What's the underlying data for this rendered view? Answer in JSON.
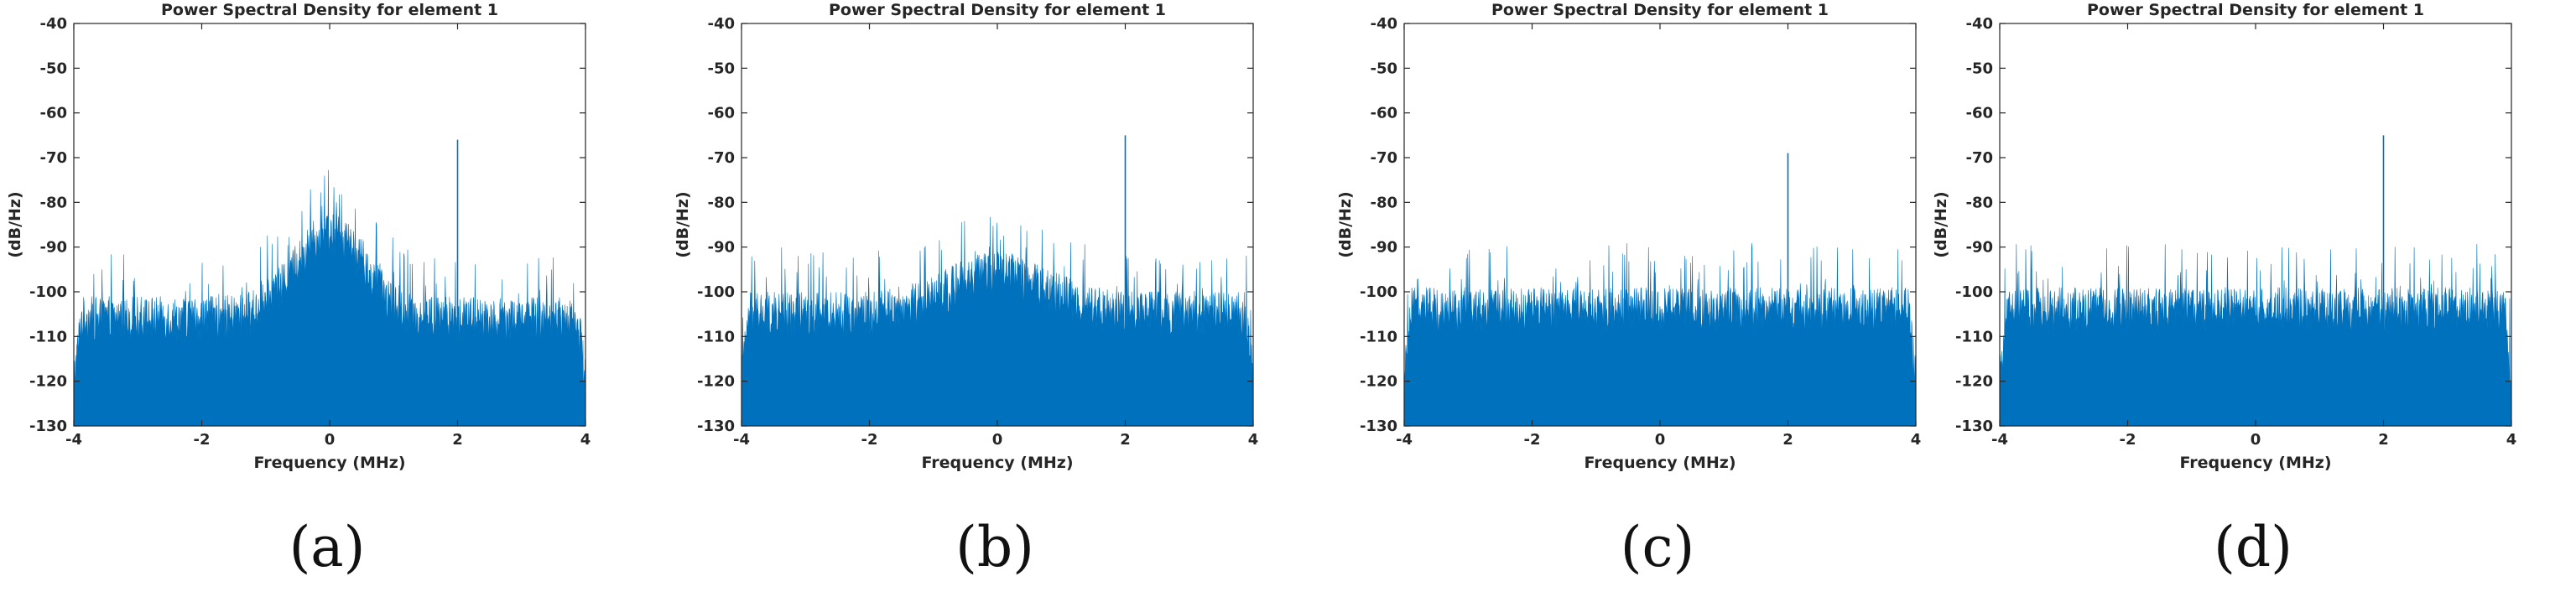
{
  "chart_data": [
    {
      "type": "area",
      "subfigure_label": "(a)",
      "title": "Power Spectral Density for element 1",
      "xlabel": "Frequency (MHz)",
      "ylabel": "(dB/Hz)",
      "xlim": [
        -4,
        4
      ],
      "ylim": [
        -130,
        -40
      ],
      "xticks": [
        -4,
        -2,
        0,
        2,
        4
      ],
      "yticks": [
        -40,
        -50,
        -60,
        -70,
        -80,
        -90,
        -100,
        -110,
        -120,
        -130
      ],
      "series": [
        {
          "name": "PSD",
          "color": "#0072BD",
          "noise_floor_dB": -106,
          "band_peak": {
            "center_MHz": 0,
            "width_MHz": 1.8,
            "peak_dB": -87
          },
          "spike": {
            "freq_MHz": 2,
            "peak_dB": -66
          },
          "edge_rolloff_dB": -120
        }
      ]
    },
    {
      "type": "area",
      "subfigure_label": "(b)",
      "title": "Power Spectral Density for element 1",
      "xlabel": "Frequency (MHz)",
      "ylabel": "(dB/Hz)",
      "xlim": [
        -4,
        4
      ],
      "ylim": [
        -130,
        -40
      ],
      "xticks": [
        -4,
        -2,
        0,
        2,
        4
      ],
      "yticks": [
        -40,
        -50,
        -60,
        -70,
        -80,
        -90,
        -100,
        -110,
        -120,
        -130
      ],
      "series": [
        {
          "name": "PSD",
          "color": "#0072BD",
          "noise_floor_dB": -105,
          "band_peak": {
            "center_MHz": 0,
            "width_MHz": 2.6,
            "peak_dB": -96
          },
          "spike": {
            "freq_MHz": 2,
            "peak_dB": -65
          },
          "edge_rolloff_dB": -120
        }
      ]
    },
    {
      "type": "area",
      "subfigure_label": "(c)",
      "title": "Power Spectral Density for element 1",
      "xlabel": "Frequency (MHz)",
      "ylabel": "(dB/Hz)",
      "xlim": [
        -4,
        4
      ],
      "ylim": [
        -130,
        -40
      ],
      "xticks": [
        -4,
        -2,
        0,
        2,
        4
      ],
      "yticks": [
        -40,
        -50,
        -60,
        -70,
        -80,
        -90,
        -100,
        -110,
        -120,
        -130
      ],
      "series": [
        {
          "name": "PSD",
          "color": "#0072BD",
          "noise_floor_dB": -104,
          "band_peak": null,
          "spike": {
            "freq_MHz": 2,
            "peak_dB": -69
          },
          "edge_rolloff_dB": -120
        }
      ]
    },
    {
      "type": "area",
      "subfigure_label": "(d)",
      "title": "Power Spectral Density for element 1",
      "xlabel": "Frequency (MHz)",
      "ylabel": "(dB/Hz)",
      "xlim": [
        -4,
        4
      ],
      "ylim": [
        -130,
        -40
      ],
      "xticks": [
        -4,
        -2,
        0,
        2,
        4
      ],
      "yticks": [
        -40,
        -50,
        -60,
        -70,
        -80,
        -90,
        -100,
        -110,
        -120,
        -130
      ],
      "series": [
        {
          "name": "PSD",
          "color": "#0072BD",
          "noise_floor_dB": -104,
          "band_peak": null,
          "spike": {
            "freq_MHz": 2,
            "peak_dB": -65
          },
          "edge_rolloff_dB": -120
        }
      ]
    }
  ]
}
